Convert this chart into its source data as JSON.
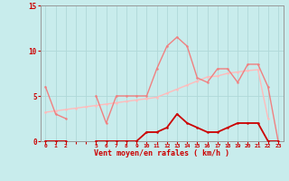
{
  "hours": [
    0,
    1,
    2,
    3,
    4,
    5,
    6,
    7,
    8,
    9,
    10,
    11,
    12,
    13,
    14,
    15,
    16,
    17,
    18,
    19,
    20,
    21,
    22,
    23
  ],
  "rafales": [
    6.0,
    3.0,
    2.5,
    null,
    null,
    5.0,
    2.0,
    5.0,
    5.0,
    5.0,
    5.0,
    8.0,
    10.5,
    11.5,
    10.5,
    7.0,
    6.5,
    8.0,
    8.0,
    6.5,
    8.5,
    8.5,
    6.0,
    0.0
  ],
  "vent_moyen": [
    0.0,
    0.0,
    0.0,
    null,
    null,
    0.0,
    0.0,
    0.0,
    0.0,
    0.0,
    1.0,
    1.0,
    1.5,
    3.0,
    2.0,
    1.5,
    1.0,
    1.0,
    1.5,
    2.0,
    2.0,
    2.0,
    0.0,
    0.0
  ],
  "trend": [
    3.2,
    3.35,
    3.5,
    3.65,
    3.8,
    3.95,
    4.1,
    4.25,
    4.4,
    4.55,
    4.7,
    4.85,
    5.3,
    5.75,
    6.2,
    6.65,
    7.1,
    7.2,
    7.5,
    7.65,
    7.8,
    7.9,
    2.5,
    null
  ],
  "color_rafales": "#f08080",
  "color_vent_moyen": "#cc0000",
  "color_trend": "#ffbbbb",
  "background_color": "#c8ecec",
  "grid_color": "#b0d8d8",
  "xlabel": "Vent moyen/en rafales ( km/h )",
  "xlabel_color": "#cc0000",
  "tick_color": "#cc0000",
  "ylim": [
    0,
    15
  ],
  "yticks": [
    0,
    5,
    10,
    15
  ],
  "xtick_labels": [
    "0",
    "1",
    "2",
    "",
    "",
    "5",
    "6",
    "7",
    "8",
    "9",
    "10",
    "11",
    "12",
    "13",
    "14",
    "15",
    "16",
    "17",
    "18",
    "19",
    "20",
    "21",
    "22",
    "23"
  ]
}
